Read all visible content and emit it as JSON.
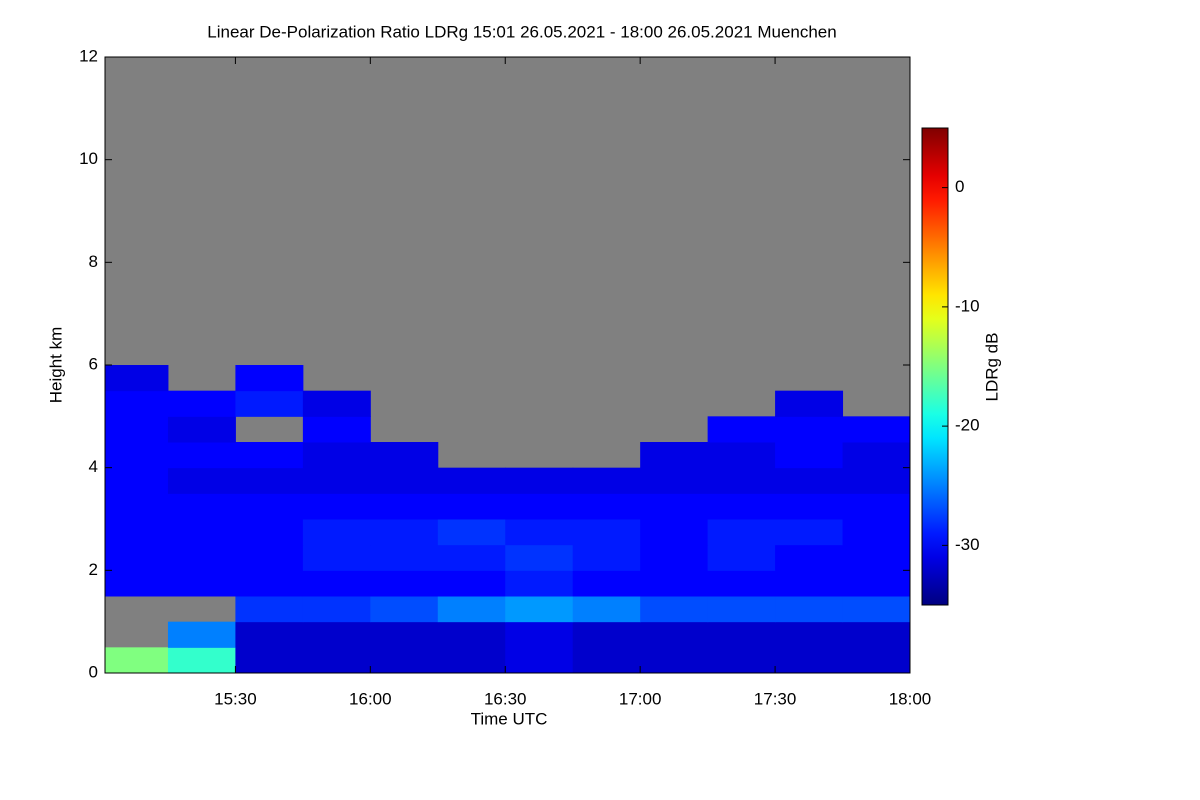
{
  "chart_data": {
    "type": "heatmap",
    "title": "Linear De-Polarization Ratio LDRg   15:01 26.05.2021 - 18:00 26.05.2021 Muenchen",
    "x_label": "Time UTC",
    "y_label": "Height km",
    "colorbar_label": "LDRg dB",
    "xlim": [
      15.0167,
      18.0
    ],
    "xticks": [
      {
        "value": 15.5,
        "label": "15:30"
      },
      {
        "value": 16.0,
        "label": "16:00"
      },
      {
        "value": 16.5,
        "label": "16:30"
      },
      {
        "value": 17.0,
        "label": "17:00"
      },
      {
        "value": 17.5,
        "label": "17:30"
      },
      {
        "value": 18.0,
        "label": "18:00"
      }
    ],
    "ylim": [
      0,
      12
    ],
    "yticks": [
      0,
      2,
      4,
      6,
      8,
      10,
      12
    ],
    "zlim": [
      -35,
      5
    ],
    "zticks": [
      0,
      -10,
      -20,
      -30
    ],
    "colormap": "jet",
    "missing_color": "#808080",
    "x_bins": [
      15.0167,
      15.25,
      15.5,
      15.75,
      16.0,
      16.25,
      16.5,
      16.75,
      17.0,
      17.25,
      17.5,
      17.75,
      18.0
    ],
    "y_bins": [
      0,
      0.5,
      1.0,
      1.5,
      2.0,
      2.5,
      3.0,
      3.5,
      4.0,
      4.5,
      5.0,
      5.5,
      6.0
    ],
    "z": [
      [
        -15,
        -18,
        -32,
        -32,
        -32,
        -32,
        -31,
        -32,
        -32,
        -32,
        -32,
        -32
      ],
      [
        null,
        -25,
        -32,
        -32,
        -32,
        -32,
        -31,
        -32,
        -32,
        -32,
        -32,
        -32
      ],
      [
        null,
        null,
        -28,
        -28,
        -27,
        -25,
        -24,
        -25,
        -27,
        -27,
        -27,
        -27
      ],
      [
        -30,
        -30,
        -30,
        -30,
        -30,
        -30,
        -29,
        -30,
        -30,
        -30,
        -30,
        -30
      ],
      [
        -30,
        -30,
        -30,
        -29,
        -29,
        -29,
        -28,
        -29,
        -30,
        -29,
        -30,
        -30
      ],
      [
        -30,
        -30,
        -30,
        -29,
        -29,
        -28,
        -29,
        -29,
        -30,
        -29,
        -29,
        -30
      ],
      [
        -30,
        -30,
        -30,
        -30,
        -30,
        -30,
        -30,
        -30,
        -30,
        -30,
        -30,
        -30
      ],
      [
        -30,
        -31,
        -31,
        -31,
        -31,
        -31,
        -31,
        -31,
        -31,
        -31,
        -31,
        -31
      ],
      [
        -30,
        -30,
        -30,
        -31,
        -31,
        null,
        null,
        null,
        -31,
        -31,
        -30,
        -31
      ],
      [
        -30,
        -31,
        null,
        -30,
        null,
        null,
        null,
        null,
        null,
        -30,
        -30,
        -30
      ],
      [
        -30,
        -30,
        -29,
        -31,
        null,
        null,
        null,
        null,
        null,
        null,
        -31,
        null
      ],
      [
        -31,
        null,
        -30,
        null,
        null,
        null,
        null,
        null,
        null,
        null,
        null,
        null
      ]
    ]
  }
}
